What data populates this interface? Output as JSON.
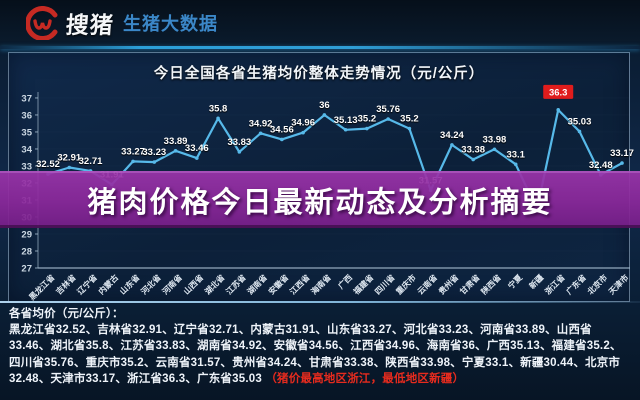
{
  "header": {
    "brand": "搜猪",
    "tagline": "生猪大数据",
    "logo_icon": "pig-snout-icon",
    "brand_red": "#c62a23",
    "tagline_blue": "#3b87c8"
  },
  "overlay": {
    "headline": "猪肉价格今日最新动态及分析摘要"
  },
  "chart_data": {
    "type": "line",
    "title": "今日全国各省生猪均价整体走势情况（元/公斤）",
    "categories": [
      "黑龙江省",
      "吉林省",
      "辽宁省",
      "内蒙古",
      "山东省",
      "河北省",
      "河南省",
      "山西省",
      "湖北省",
      "江苏省",
      "湖南省",
      "安徽省",
      "江西省",
      "海南省",
      "广西",
      "福建省",
      "四川省",
      "重庆市",
      "云南省",
      "贵州省",
      "甘肃省",
      "陕西省",
      "宁夏",
      "新疆",
      "浙江省",
      "广东省",
      "北京市",
      "天津市"
    ],
    "values": [
      32.52,
      32.91,
      32.71,
      31.91,
      33.27,
      33.23,
      33.89,
      33.46,
      35.8,
      33.83,
      34.92,
      34.56,
      34.96,
      36,
      35.13,
      35.2,
      35.76,
      35.2,
      31.57,
      34.24,
      33.38,
      33.98,
      33.1,
      30.44,
      36.3,
      35.03,
      32.48,
      33.17
    ],
    "ylim": [
      27,
      37
    ],
    "ytick_step": 1,
    "grid": false,
    "line_color": "#57b9e9",
    "value_label_color": "#ffffff",
    "axis_color": "#a9c0d2",
    "tick_label_color": "#cdd9e4",
    "highlight_index": 24,
    "highlight_color": "#e01c1c",
    "legend_position": "none"
  },
  "summary": {
    "heading": "各省均价（元/公斤）：",
    "body": "黑龙江省32.52、吉林省32.91、辽宁省32.71、内蒙古31.91、山东省33.27、河北省33.23、河南省33.89、山西省33.46、湖北省35.8、江苏省33.83、湖南省34.92、安徽省34.56、江西省34.96、海南省36、广西35.13、福建省35.2、四川省35.76、重庆市35.2、云南省31.57、贵州省34.24、甘肃省33.38、陕西省33.98、宁夏33.1、新疆30.44、北京市32.48、天津市33.17、浙江省36.3、广东省35.03 ",
    "note": "（猪价最高地区浙江，最低地区新疆）",
    "note_color": "#e62b1e"
  }
}
